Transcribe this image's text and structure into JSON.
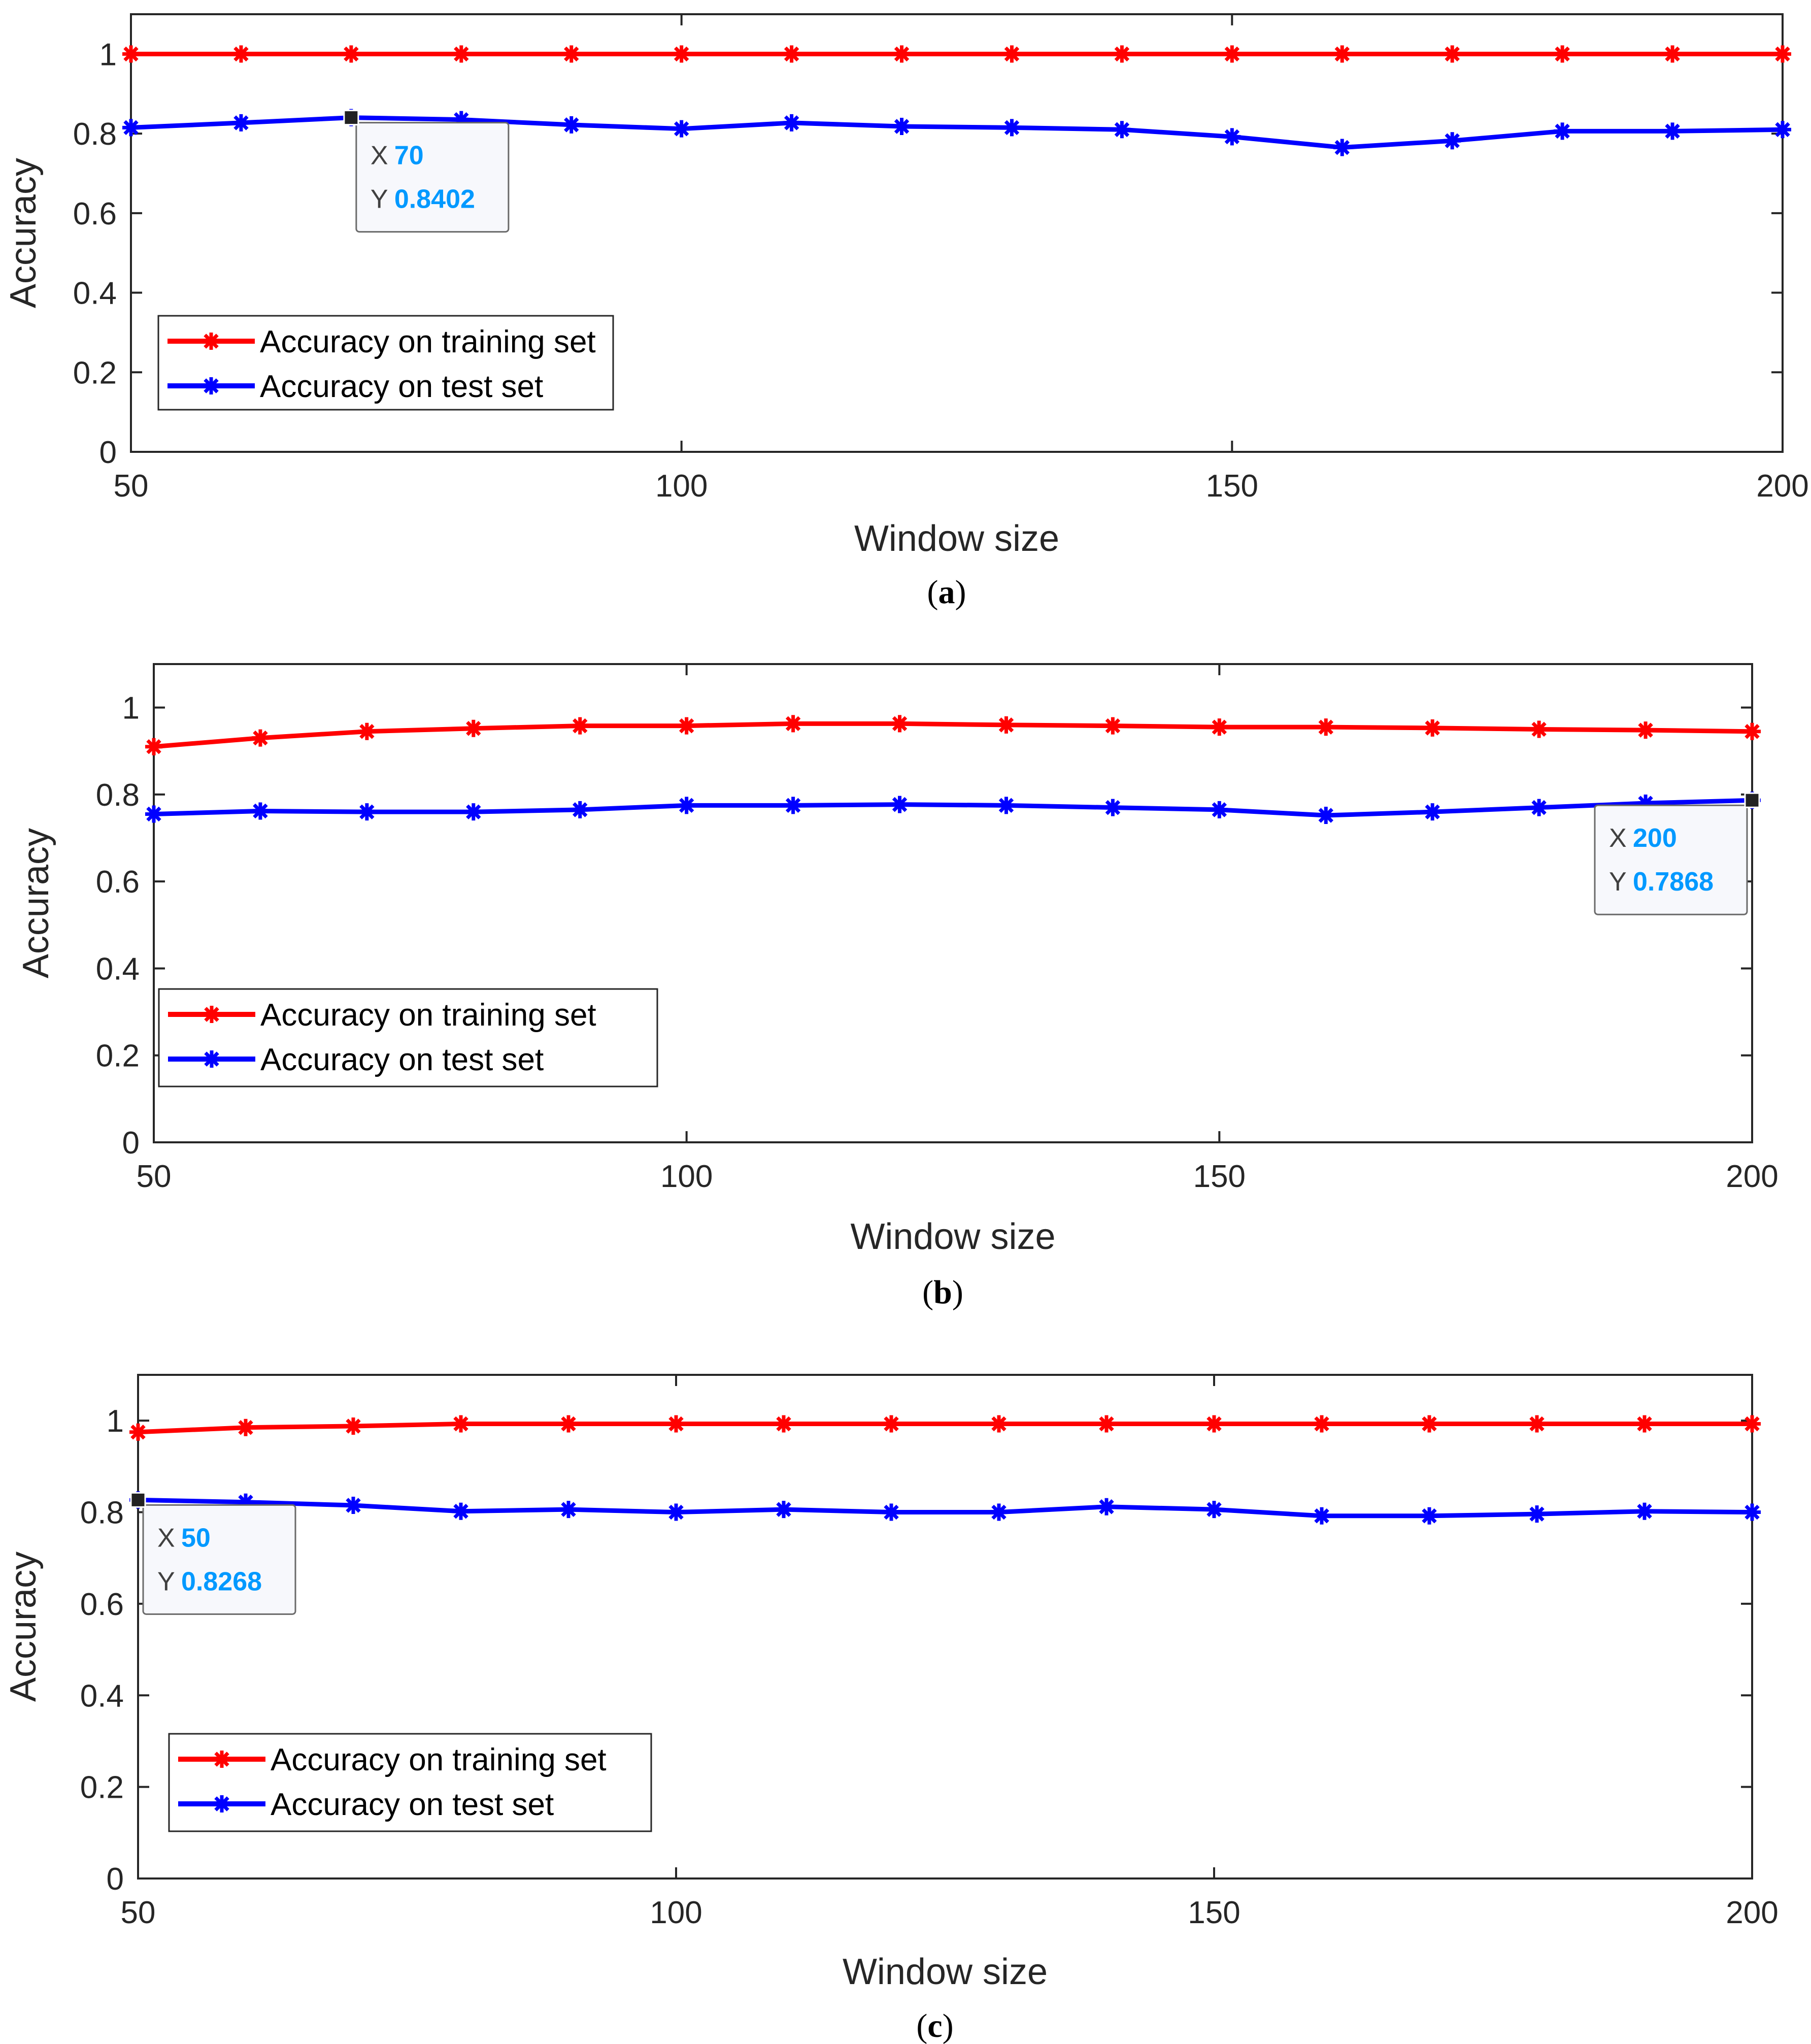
{
  "chart_data": [
    {
      "type": "line",
      "panel_label": "a",
      "x": [
        50,
        60,
        70,
        80,
        90,
        100,
        110,
        120,
        130,
        140,
        150,
        160,
        170,
        180,
        190,
        200
      ],
      "series": [
        {
          "name": "Accuracy on training set",
          "color": "#ff0000",
          "values": [
            1,
            1,
            1,
            1,
            1,
            1,
            1,
            1,
            1,
            1,
            1,
            1,
            1,
            1,
            1,
            1
          ]
        },
        {
          "name": "Accuracy on test set",
          "color": "#0000ff",
          "values": [
            0.815,
            0.827,
            0.8402,
            0.835,
            0.822,
            0.812,
            0.827,
            0.818,
            0.815,
            0.81,
            0.792,
            0.765,
            0.782,
            0.806,
            0.806,
            0.81
          ]
        }
      ],
      "xlabel": "Window size",
      "ylabel": "Accuracy",
      "xlim": [
        50,
        200
      ],
      "ylim": [
        0,
        1.1
      ],
      "xticks": [
        "50",
        "100",
        "150",
        "200"
      ],
      "yticks": [
        "0",
        "0.2",
        "0.4",
        "0.6",
        "0.8",
        "1"
      ],
      "legend_placement": "bottom-left",
      "datatip": {
        "x_key": "X",
        "x_value": "70",
        "y_key": "Y",
        "y_value": "0.8402",
        "anchor_x": 70,
        "anchor_y": 0.8402,
        "placement": "below-right"
      }
    },
    {
      "type": "line",
      "panel_label": "b",
      "x": [
        50,
        60,
        70,
        80,
        90,
        100,
        110,
        120,
        130,
        140,
        150,
        160,
        170,
        180,
        190,
        200
      ],
      "series": [
        {
          "name": "Accuracy on training set",
          "color": "#ff0000",
          "values": [
            0.91,
            0.93,
            0.945,
            0.952,
            0.958,
            0.958,
            0.963,
            0.963,
            0.96,
            0.958,
            0.955,
            0.955,
            0.953,
            0.95,
            0.948,
            0.945
          ]
        },
        {
          "name": "Accuracy on test set",
          "color": "#0000ff",
          "values": [
            0.755,
            0.762,
            0.76,
            0.76,
            0.765,
            0.775,
            0.775,
            0.777,
            0.775,
            0.77,
            0.765,
            0.752,
            0.76,
            0.77,
            0.78,
            0.7868
          ]
        }
      ],
      "xlabel": "Window size",
      "ylabel": "Accuracy",
      "xlim": [
        50,
        200
      ],
      "ylim": [
        0,
        1.1
      ],
      "xticks": [
        "50",
        "100",
        "150",
        "200"
      ],
      "yticks": [
        "0",
        "0.2",
        "0.4",
        "0.6",
        "0.8",
        "1"
      ],
      "legend_placement": "bottom-left",
      "datatip": {
        "x_key": "X",
        "x_value": "200",
        "y_key": "Y",
        "y_value": "0.7868",
        "anchor_x": 200,
        "anchor_y": 0.7868,
        "placement": "below-left"
      }
    },
    {
      "type": "line",
      "panel_label": "c",
      "x": [
        50,
        60,
        70,
        80,
        90,
        100,
        110,
        120,
        130,
        140,
        150,
        160,
        170,
        180,
        190,
        200
      ],
      "series": [
        {
          "name": "Accuracy on training set",
          "color": "#ff0000",
          "values": [
            0.975,
            0.985,
            0.988,
            0.993,
            0.993,
            0.993,
            0.993,
            0.993,
            0.993,
            0.993,
            0.993,
            0.993,
            0.993,
            0.993,
            0.993,
            0.993
          ]
        },
        {
          "name": "Accuracy on test set",
          "color": "#0000ff",
          "values": [
            0.8268,
            0.822,
            0.815,
            0.802,
            0.806,
            0.8,
            0.806,
            0.8,
            0.8,
            0.812,
            0.806,
            0.792,
            0.792,
            0.796,
            0.802,
            0.8
          ]
        }
      ],
      "xlabel": "Window size",
      "ylabel": "Accuracy",
      "xlim": [
        50,
        200
      ],
      "ylim": [
        0,
        1.1
      ],
      "xticks": [
        "50",
        "100",
        "150",
        "200"
      ],
      "yticks": [
        "0",
        "0.2",
        "0.4",
        "0.6",
        "0.8",
        "1"
      ],
      "legend_placement": "bottom-left",
      "datatip": {
        "x_key": "X",
        "x_value": "50",
        "y_key": "Y",
        "y_value": "0.8268",
        "anchor_x": 50,
        "anchor_y": 0.8268,
        "placement": "below-right"
      }
    }
  ]
}
